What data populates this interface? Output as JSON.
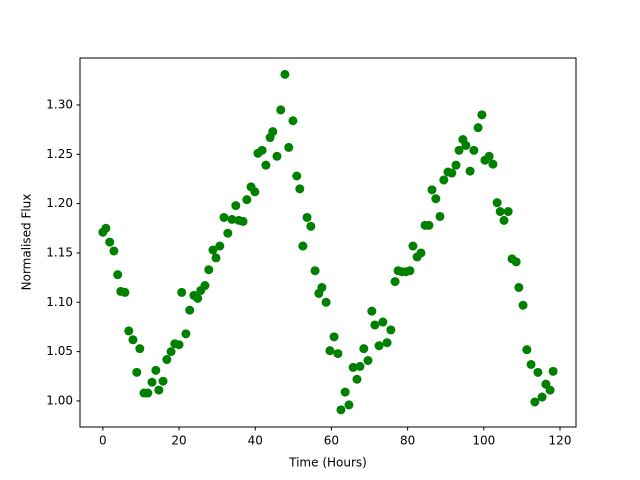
{
  "chart_data": {
    "type": "scatter",
    "x_label": "Time (Hours)",
    "y_label": "Normalised Flux",
    "color": "#008000",
    "xlim": [
      -6,
      124.2
    ],
    "ylim": [
      0.9736,
      1.3476
    ],
    "xticks": [
      0,
      20,
      40,
      60,
      80,
      100,
      120
    ],
    "yticks": [
      {
        "value": 1.0,
        "label": "1.00"
      },
      {
        "value": 1.05,
        "label": "1.05"
      },
      {
        "value": 1.1,
        "label": "1.10"
      },
      {
        "value": 1.15,
        "label": "1.15"
      },
      {
        "value": 1.2,
        "label": "1.20"
      },
      {
        "value": 1.25,
        "label": "1.25"
      },
      {
        "value": 1.3,
        "label": "1.30"
      }
    ],
    "x": [
      0,
      0.8,
      1.8,
      2.9,
      3.9,
      4.7,
      5.8,
      6.8,
      7.9,
      8.9,
      9.7,
      10.8,
      11.8,
      12.9,
      13.9,
      14.7,
      15.8,
      16.8,
      17.9,
      18.9,
      20.0,
      20.7,
      21.8,
      22.8,
      23.9,
      24.9,
      25.7,
      26.8,
      27.8,
      28.9,
      29.7,
      30.7,
      31.8,
      32.8,
      33.9,
      34.9,
      35.7,
      36.8,
      37.8,
      38.9,
      39.9,
      40.7,
      41.8,
      42.8,
      43.9,
      44.6,
      45.7,
      46.7,
      47.8,
      48.8,
      49.9,
      50.9,
      51.7,
      52.5,
      53.6,
      54.6,
      55.7,
      56.7,
      57.5,
      58.6,
      59.6,
      60.7,
      61.7,
      62.5,
      63.6,
      64.6,
      65.7,
      66.7,
      67.5,
      68.5,
      69.6,
      70.6,
      71.4,
      72.5,
      73.5,
      74.6,
      75.6,
      76.7,
      77.5,
      78.5,
      79.6,
      80.6,
      81.4,
      82.5,
      83.5,
      84.6,
      85.6,
      86.4,
      87.4,
      88.5,
      89.5,
      90.6,
      91.6,
      92.7,
      93.5,
      94.5,
      95.3,
      96.4,
      97.4,
      98.5,
      99.5,
      100.3,
      101.4,
      102.4,
      103.5,
      104.3,
      105.3,
      106.4,
      107.4,
      108.5,
      109.2,
      110.3,
      111.3,
      112.4,
      113.4,
      114.2,
      115.3,
      116.3,
      117.4,
      118.2
    ],
    "values": [
      1.171,
      1.175,
      1.161,
      1.152,
      1.128,
      1.111,
      1.11,
      1.071,
      1.062,
      1.029,
      1.053,
      1.008,
      1.008,
      1.019,
      1.031,
      1.011,
      1.02,
      1.042,
      1.05,
      1.058,
      1.057,
      1.11,
      1.068,
      1.092,
      1.107,
      1.104,
      1.112,
      1.117,
      1.133,
      1.153,
      1.145,
      1.157,
      1.186,
      1.17,
      1.184,
      1.198,
      1.183,
      1.182,
      1.204,
      1.217,
      1.212,
      1.251,
      1.254,
      1.239,
      1.267,
      1.273,
      1.248,
      1.295,
      1.331,
      1.257,
      1.284,
      1.228,
      1.215,
      1.157,
      1.186,
      1.177,
      1.132,
      1.109,
      1.115,
      1.1,
      1.051,
      1.065,
      1.048,
      0.991,
      1.009,
      0.996,
      1.034,
      1.022,
      1.035,
      1.053,
      1.041,
      1.091,
      1.077,
      1.056,
      1.08,
      1.059,
      1.072,
      1.121,
      1.132,
      1.131,
      1.131,
      1.132,
      1.157,
      1.146,
      1.15,
      1.178,
      1.178,
      1.214,
      1.205,
      1.187,
      1.224,
      1.232,
      1.231,
      1.239,
      1.254,
      1.265,
      1.259,
      1.233,
      1.254,
      1.277,
      1.29,
      1.244,
      1.248,
      1.24,
      1.201,
      1.192,
      1.183,
      1.192,
      1.144,
      1.141,
      1.115,
      1.097,
      1.052,
      1.037,
      0.999,
      1.029,
      1.004,
      1.017,
      1.011,
      1.03
    ]
  }
}
